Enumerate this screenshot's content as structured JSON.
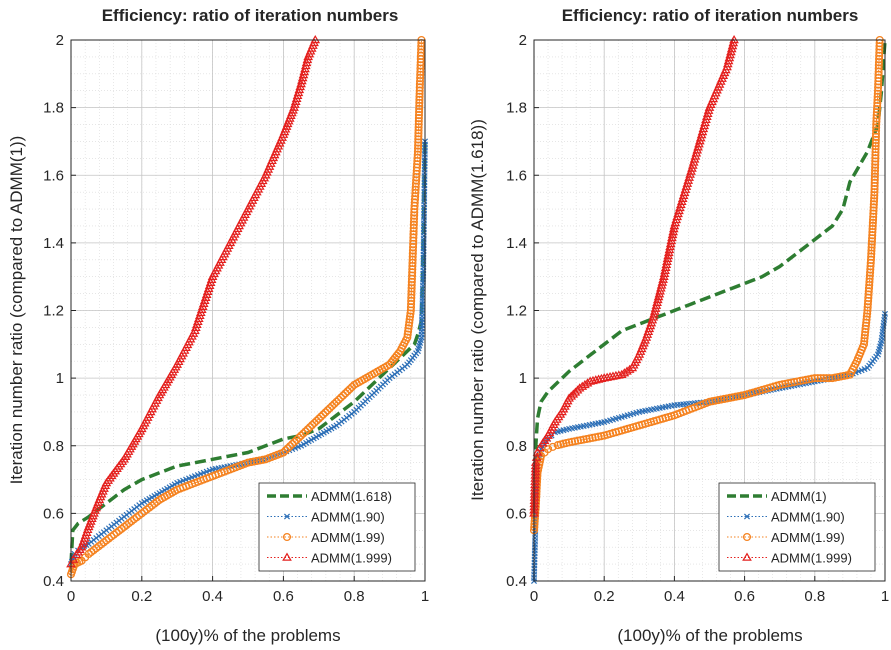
{
  "chart_data": [
    {
      "type": "line",
      "title": "Efficiency: ratio of iteration numbers",
      "xlabel": "(100y)% of the problems",
      "ylabel": "Iteration number ratio (compared to ADMM(1))",
      "xlim": [
        0,
        1
      ],
      "ylim": [
        0.4,
        2
      ],
      "x_ticks": [
        "0",
        "0.2",
        "0.4",
        "0.6",
        "0.8",
        "1"
      ],
      "y_ticks": [
        "0.4",
        "0.6",
        "0.8",
        "1",
        "1.2",
        "1.4",
        "1.6",
        "1.8",
        "2"
      ],
      "grid": "on",
      "legend_position": "bottom-right",
      "series": [
        {
          "name": "ADMM(1.618)",
          "color": "#2e7d32",
          "style": "dashed-thick",
          "marker": "none",
          "x": [
            0,
            0.005,
            0.02,
            0.05,
            0.1,
            0.15,
            0.2,
            0.25,
            0.3,
            0.35,
            0.4,
            0.45,
            0.5,
            0.55,
            0.6,
            0.65,
            0.7,
            0.75,
            0.8,
            0.85,
            0.9,
            0.94,
            0.97,
            0.98,
            0.99,
            0.995,
            1.0
          ],
          "y": [
            0.45,
            0.55,
            0.57,
            0.59,
            0.63,
            0.67,
            0.7,
            0.72,
            0.74,
            0.75,
            0.76,
            0.77,
            0.78,
            0.8,
            0.82,
            0.83,
            0.85,
            0.89,
            0.93,
            0.98,
            1.03,
            1.07,
            1.1,
            1.13,
            1.17,
            1.4,
            1.7
          ]
        },
        {
          "name": "ADMM(1.90)",
          "color": "#2c6fb7",
          "style": "dotted",
          "marker": "x",
          "x": [
            0,
            0.01,
            0.03,
            0.05,
            0.1,
            0.15,
            0.2,
            0.25,
            0.3,
            0.35,
            0.4,
            0.45,
            0.5,
            0.55,
            0.6,
            0.65,
            0.7,
            0.75,
            0.8,
            0.85,
            0.9,
            0.95,
            0.98,
            0.99,
            0.995,
            1.0
          ],
          "y": [
            0.45,
            0.48,
            0.5,
            0.51,
            0.55,
            0.59,
            0.63,
            0.66,
            0.69,
            0.71,
            0.73,
            0.74,
            0.75,
            0.76,
            0.78,
            0.8,
            0.83,
            0.86,
            0.9,
            0.95,
            1.0,
            1.04,
            1.08,
            1.12,
            1.3,
            1.7
          ]
        },
        {
          "name": "ADMM(1.99)",
          "color": "#f5821f",
          "style": "dotted",
          "marker": "o",
          "x": [
            0,
            0.01,
            0.03,
            0.05,
            0.1,
            0.15,
            0.2,
            0.25,
            0.3,
            0.35,
            0.4,
            0.45,
            0.5,
            0.55,
            0.6,
            0.65,
            0.7,
            0.75,
            0.8,
            0.85,
            0.9,
            0.93,
            0.95,
            0.96,
            0.965,
            0.97,
            0.98,
            0.985,
            0.99
          ],
          "y": [
            0.42,
            0.45,
            0.46,
            0.48,
            0.52,
            0.56,
            0.6,
            0.64,
            0.67,
            0.69,
            0.71,
            0.73,
            0.75,
            0.76,
            0.78,
            0.83,
            0.88,
            0.93,
            0.98,
            1.01,
            1.04,
            1.08,
            1.12,
            1.2,
            1.35,
            1.5,
            1.67,
            1.85,
            2.0
          ]
        },
        {
          "name": "ADMM(1.999)",
          "color": "#e4201e",
          "style": "dotted",
          "marker": "triangle",
          "x": [
            0,
            0.01,
            0.03,
            0.05,
            0.08,
            0.1,
            0.15,
            0.2,
            0.25,
            0.3,
            0.35,
            0.4,
            0.45,
            0.5,
            0.55,
            0.6,
            0.63,
            0.65,
            0.67,
            0.69
          ],
          "y": [
            0.45,
            0.47,
            0.5,
            0.56,
            0.64,
            0.69,
            0.76,
            0.85,
            0.95,
            1.04,
            1.14,
            1.3,
            1.4,
            1.5,
            1.6,
            1.72,
            1.8,
            1.87,
            1.95,
            2.0
          ]
        }
      ]
    },
    {
      "type": "line",
      "title": "Efficiency: ratio of iteration numbers",
      "xlabel": "(100y)% of the problems",
      "ylabel": "Iteration number ratio (compared to ADMM(1.618))",
      "xlim": [
        0,
        1
      ],
      "ylim": [
        0.4,
        2
      ],
      "x_ticks": [
        "0",
        "0.2",
        "0.4",
        "0.6",
        "0.8",
        "1"
      ],
      "y_ticks": [
        "0.4",
        "0.6",
        "0.8",
        "1",
        "1.2",
        "1.4",
        "1.6",
        "1.8",
        "2"
      ],
      "grid": "on",
      "legend_position": "bottom-right",
      "series": [
        {
          "name": "ADMM(1)",
          "color": "#2e7d32",
          "style": "dashed-thick",
          "marker": "none",
          "x": [
            0,
            0.005,
            0.01,
            0.02,
            0.04,
            0.07,
            0.1,
            0.15,
            0.2,
            0.25,
            0.3,
            0.35,
            0.4,
            0.45,
            0.5,
            0.55,
            0.6,
            0.65,
            0.7,
            0.75,
            0.8,
            0.85,
            0.88,
            0.9,
            0.95,
            0.98,
            0.99,
            1.0
          ],
          "y": [
            0.6,
            0.8,
            0.88,
            0.93,
            0.96,
            0.99,
            1.02,
            1.06,
            1.1,
            1.14,
            1.16,
            1.18,
            1.2,
            1.22,
            1.24,
            1.26,
            1.28,
            1.3,
            1.33,
            1.37,
            1.41,
            1.45,
            1.5,
            1.58,
            1.67,
            1.75,
            1.85,
            2.0
          ]
        },
        {
          "name": "ADMM(1.90)",
          "color": "#2c6fb7",
          "style": "dotted",
          "marker": "x",
          "x": [
            0,
            0.005,
            0.01,
            0.02,
            0.04,
            0.06,
            0.1,
            0.15,
            0.2,
            0.3,
            0.4,
            0.5,
            0.6,
            0.7,
            0.8,
            0.85,
            0.9,
            0.95,
            0.98,
            0.99,
            1.0
          ],
          "y": [
            0.4,
            0.6,
            0.75,
            0.79,
            0.82,
            0.84,
            0.85,
            0.86,
            0.87,
            0.9,
            0.92,
            0.93,
            0.95,
            0.97,
            0.99,
            1.0,
            1.01,
            1.03,
            1.07,
            1.11,
            1.19
          ]
        },
        {
          "name": "ADMM(1.99)",
          "color": "#f5821f",
          "style": "dotted",
          "marker": "o",
          "x": [
            0,
            0.005,
            0.01,
            0.02,
            0.04,
            0.06,
            0.1,
            0.15,
            0.2,
            0.3,
            0.4,
            0.5,
            0.6,
            0.7,
            0.8,
            0.85,
            0.9,
            0.92,
            0.94,
            0.95,
            0.96,
            0.97,
            0.975,
            0.98,
            0.985
          ],
          "y": [
            0.55,
            0.62,
            0.72,
            0.77,
            0.79,
            0.8,
            0.81,
            0.82,
            0.83,
            0.86,
            0.89,
            0.93,
            0.95,
            0.98,
            1.0,
            1.0,
            1.01,
            1.05,
            1.1,
            1.2,
            1.35,
            1.55,
            1.75,
            1.85,
            2.0
          ]
        },
        {
          "name": "ADMM(1.999)",
          "color": "#e4201e",
          "style": "dotted",
          "marker": "triangle",
          "x": [
            0,
            0.005,
            0.01,
            0.02,
            0.04,
            0.06,
            0.08,
            0.1,
            0.13,
            0.16,
            0.2,
            0.25,
            0.28,
            0.3,
            0.32,
            0.34,
            0.37,
            0.4,
            0.45,
            0.5,
            0.55,
            0.57
          ],
          "y": [
            0.6,
            0.75,
            0.78,
            0.8,
            0.83,
            0.87,
            0.9,
            0.94,
            0.97,
            0.99,
            1.0,
            1.01,
            1.03,
            1.07,
            1.12,
            1.18,
            1.3,
            1.45,
            1.62,
            1.8,
            1.92,
            2.0
          ]
        }
      ]
    }
  ]
}
